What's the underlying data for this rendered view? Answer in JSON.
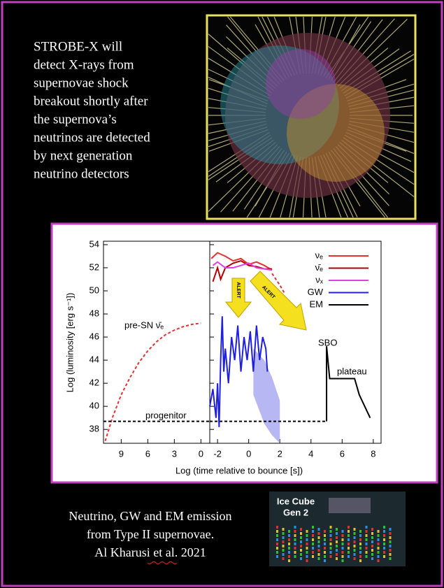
{
  "intro": [
    "STROBE-X will",
    "detect X-rays from",
    "supernovae shock",
    "breakout shortly after",
    "the supernova’s",
    "neutrinos are detected",
    "by next generation",
    "neutrino detectors"
  ],
  "chart_data": {
    "type": "line",
    "ylabel": "Log (luminosity [erg s⁻¹])",
    "xlabel": "Log (time relative  to bounce [s])",
    "ylim": [
      36.8,
      54.3
    ],
    "yticks": [
      38,
      40,
      42,
      44,
      46,
      48,
      50,
      52,
      54
    ],
    "panels": [
      {
        "xlim": [
          11,
          -1
        ],
        "xticks": [
          9,
          6,
          3,
          0
        ]
      },
      {
        "xlim": [
          -2.5,
          8.5
        ],
        "xticks": [
          -2,
          0,
          2,
          4,
          6,
          8
        ]
      }
    ],
    "series": [
      {
        "name": "νₑ",
        "color": "#e83030",
        "panel": 1,
        "x": [
          -2.4,
          -2,
          -1.5,
          -1,
          -0.5,
          0,
          0.5,
          1,
          1.5
        ],
        "values": [
          52.8,
          53.3,
          53,
          52.6,
          52.8,
          52.3,
          52.5,
          52.2,
          51.8
        ]
      },
      {
        "name": "ν̄ₑ",
        "color": "#b00000",
        "panel": 1,
        "x": [
          -2.3,
          -2,
          -1.8,
          -1.5,
          -1,
          -0.5,
          0,
          0.5,
          1,
          1.5
        ],
        "values": [
          50.8,
          52,
          51,
          52,
          52.4,
          52.6,
          52.2,
          52.1,
          51.9,
          51.9
        ]
      },
      {
        "name": "νₓ",
        "color": "#e040e0",
        "panel": 1,
        "x": [
          -2.3,
          -2,
          -1.5,
          -1,
          -0.5,
          0,
          0.5,
          1,
          1.5
        ],
        "values": [
          52.2,
          52.5,
          52,
          52,
          52.2,
          52.4,
          52,
          51.9,
          51.8
        ]
      },
      {
        "name": "GW",
        "color": "#2020e0",
        "panel": 1,
        "x": [
          -2.5,
          -2.3,
          -2.1,
          -2,
          -1.9,
          -1.8,
          -1.7,
          -1.6,
          -1.5,
          -1.3,
          -1.1,
          -0.9,
          -0.7,
          -0.5,
          -0.3,
          -0.1,
          0.1,
          0.3,
          0.5,
          0.7,
          0.9,
          1.1,
          1.2
        ],
        "values": [
          40,
          41.5,
          39,
          42,
          38.2,
          44,
          47.8,
          43,
          45,
          42,
          46,
          44,
          47,
          43,
          46,
          44,
          46.5,
          43,
          47,
          44,
          46,
          45,
          43
        ]
      },
      {
        "name": "EM",
        "color": "#000000",
        "panel": 1,
        "x": [
          5,
          5,
          5.2,
          6.8,
          7.1,
          7.8
        ],
        "values": [
          38.7,
          45.2,
          42.4,
          42.4,
          41,
          39
        ]
      }
    ],
    "unlabeled_series": [
      {
        "color": "#e83030",
        "dashed": true,
        "panel": 0,
        "x": [
          10.8,
          10,
          9,
          8,
          7,
          6,
          5,
          4,
          3,
          2,
          1,
          0
        ],
        "values": [
          37,
          39,
          41,
          42.5,
          43.8,
          44.8,
          45.6,
          46.2,
          46.6,
          46.9,
          47.1,
          47.2
        ]
      },
      {
        "color": "#000000",
        "dashed": true,
        "panel": 0,
        "x": [
          11,
          -1
        ],
        "values": [
          38.7,
          38.7
        ]
      },
      {
        "color": "#000000",
        "dashed": true,
        "panel": 1,
        "x": [
          -2.5,
          5
        ],
        "values": [
          38.7,
          38.7
        ]
      },
      {
        "color": "#e83030",
        "dashed": true,
        "panel": 1,
        "x": [
          1.5,
          2,
          2.3
        ],
        "values": [
          51.5,
          50.5,
          49.8
        ]
      }
    ],
    "band": {
      "color": "#9999ee",
      "panel": 1,
      "x": [
        0.3,
        1,
        1.5,
        2
      ],
      "low": [
        41,
        38.5,
        37.5,
        36.8
      ],
      "high": [
        45,
        44,
        42.5,
        40.5
      ]
    },
    "annotations": {
      "pre_sn": "pre-SN ν̄ₑ",
      "progenitor": "progenitor",
      "sbo": "SBO",
      "plateau": "plateau",
      "alert": "ALERT"
    }
  },
  "caption": [
    "Neutrino, GW and EM emission",
    "from Type II supernovae.",
    "Al Kharusi et al. 2021"
  ],
  "badge": [
    "Ice Cube",
    "Gen 2"
  ]
}
